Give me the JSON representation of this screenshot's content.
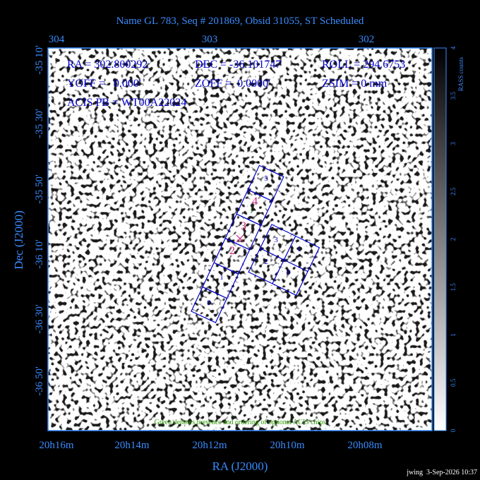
{
  "title": "Name GL 783, Seq # 201869, Obsid 31055, ST Scheduled",
  "info": [
    "RA = 302.800292",
    "DEC = -36.101747",
    "ROLL = 294.6753",
    "YOFF =   0.000'",
    "ZOFF =  0.0000'",
    "ZSIM = 0 mm",
    "ACIS PB = WT00A22024"
  ],
  "top_axis": [
    "304",
    "303",
    "302"
  ],
  "left_axis": [
    "-35 10'",
    "-35 30'",
    "-35 50'",
    "-36 10'",
    "-36 30'",
    "-36 50'"
  ],
  "left_label": "Dec (J2000)",
  "bottom_axis": [
    "20h16m",
    "20h14m",
    "20h12m",
    "20h10m",
    "20h08m"
  ],
  "bottom_label": "RA (J2000)",
  "colorbar": {
    "label": "RASS counts",
    "ticks": [
      "0",
      "0.5",
      "1",
      "1.5",
      "2",
      "2.5",
      "3",
      "3.5",
      "4"
    ]
  },
  "acis_s_chips": [
    "0",
    "1",
    "2",
    "3",
    "4",
    "5"
  ],
  "optional_chip": "1",
  "acis_i_chips": [
    "3",
    "1",
    "2",
    "0"
  ],
  "note": "Green denotes presence and ordering of optional ACIS chips",
  "footer": "jwing  3-Sep-2026 10:37"
}
